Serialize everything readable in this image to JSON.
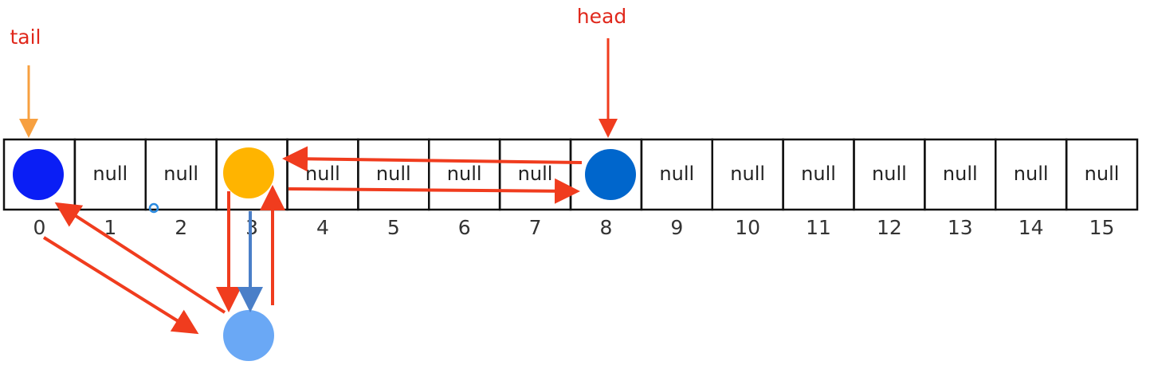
{
  "pointers": {
    "head": "head",
    "tail": "tail"
  },
  "cells": [
    null,
    "null",
    "null",
    null,
    "null",
    "null",
    "null",
    "null",
    null,
    "null",
    "null",
    "null",
    "null",
    "null",
    "null",
    "null"
  ],
  "indices": [
    0,
    1,
    2,
    3,
    4,
    5,
    6,
    7,
    8,
    9,
    10,
    11,
    12,
    13,
    14,
    15
  ]
}
